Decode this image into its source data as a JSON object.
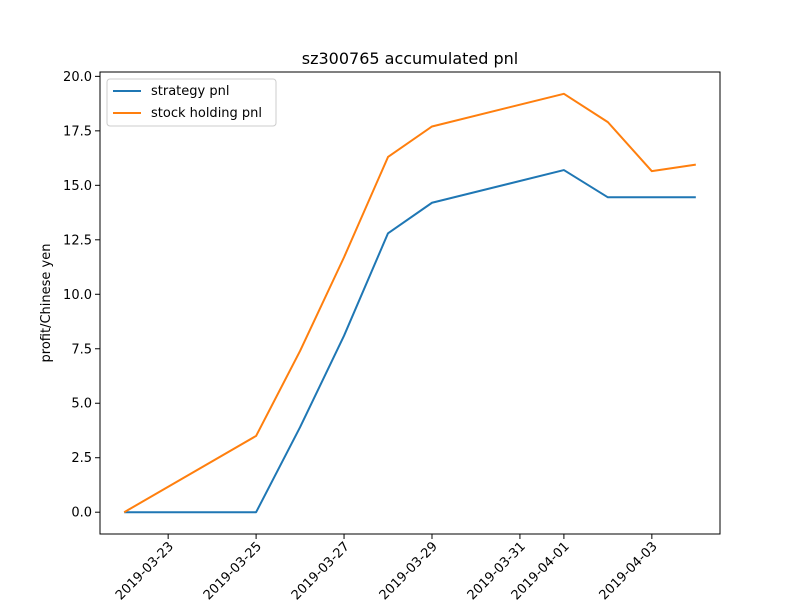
{
  "chart_data": {
    "type": "line",
    "title": "sz300765 accumulated pnl",
    "xlabel": "",
    "ylabel": "profit/Chinese yen",
    "x": [
      "2019-03-22",
      "2019-03-25",
      "2019-03-26",
      "2019-03-27",
      "2019-03-28",
      "2019-03-29",
      "2019-04-01",
      "2019-04-02",
      "2019-04-03",
      "2019-04-04"
    ],
    "series": [
      {
        "name": "strategy pnl",
        "color": "#1f77b4",
        "values": [
          0.0,
          0.0,
          3.9,
          8.1,
          12.8,
          14.2,
          15.7,
          14.45,
          14.45,
          14.45
        ]
      },
      {
        "name": "stock holding pnl",
        "color": "#ff7f0e",
        "values": [
          0.0,
          3.5,
          7.4,
          11.7,
          16.3,
          17.7,
          19.2,
          17.9,
          15.65,
          15.95
        ]
      }
    ],
    "xticks": [
      "2019-03-23",
      "2019-03-25",
      "2019-03-27",
      "2019-03-29",
      "2019-03-31",
      "2019-04-01",
      "2019-04-03"
    ],
    "yticks": [
      "0.0",
      "2.5",
      "5.0",
      "7.5",
      "10.0",
      "12.5",
      "15.0",
      "17.5",
      "20.0"
    ],
    "ylim": [
      -1.0,
      20.2
    ],
    "xlim": [
      "2019-03-21T10:48",
      "2019-04-04T13:12"
    ],
    "grid": false,
    "legend_position": "top-left"
  }
}
